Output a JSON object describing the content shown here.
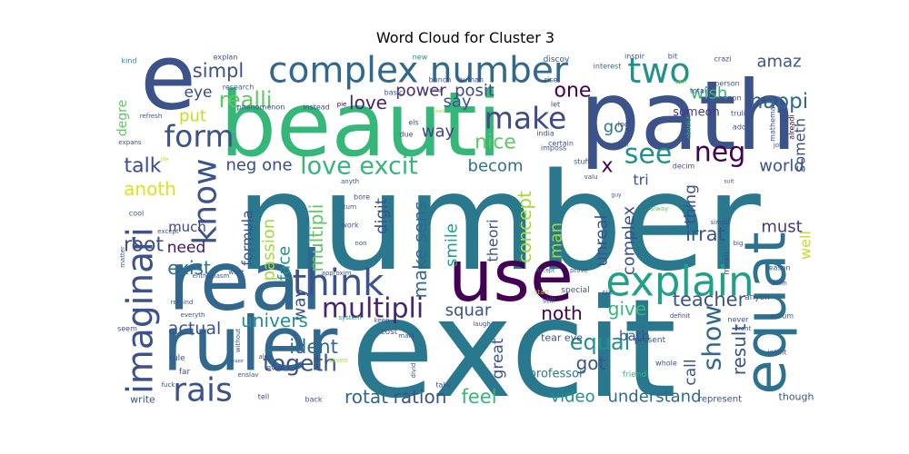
{
  "chart_data": {
    "type": "wordcloud",
    "title": "Word Cloud for Cluster 3",
    "words": [
      {
        "text": "number",
        "color": "#2a788e"
      },
      {
        "text": "excit",
        "color": "#2a788e"
      },
      {
        "text": "path",
        "color": "#3b528b"
      },
      {
        "text": "beauti",
        "color": "#35b779"
      },
      {
        "text": "e",
        "color": "#3b528b"
      },
      {
        "text": "real",
        "color": "#31688e"
      },
      {
        "text": "ruler",
        "color": "#31688e"
      },
      {
        "text": "use",
        "color": "#440154"
      },
      {
        "text": "equat",
        "color": "#2c728e"
      },
      {
        "text": "complex number",
        "color": "#31688e"
      },
      {
        "text": "two",
        "color": "#21918c"
      },
      {
        "text": "imaginari",
        "color": "#3b528b"
      },
      {
        "text": "form",
        "color": "#3b528b"
      },
      {
        "text": "make",
        "color": "#3e4a89"
      },
      {
        "text": "see",
        "color": "#21918c"
      },
      {
        "text": "neg",
        "color": "#440154"
      },
      {
        "text": "know",
        "color": "#3b528b"
      },
      {
        "text": "think",
        "color": "#3b528b"
      },
      {
        "text": "explain",
        "color": "#1fa187"
      },
      {
        "text": "show",
        "color": "#31688e"
      },
      {
        "text": "rais",
        "color": "#3b528b"
      },
      {
        "text": "togeth",
        "color": "#3b528b"
      },
      {
        "text": "simpl",
        "color": "#3b528b"
      },
      {
        "text": "realli",
        "color": "#5ec962"
      },
      {
        "text": "eye",
        "color": "#3e4a89"
      },
      {
        "text": "talk",
        "color": "#3e4a89"
      },
      {
        "text": "anoth",
        "color": "#dde318"
      },
      {
        "text": "love excit",
        "color": "#35b779"
      },
      {
        "text": "love",
        "color": "#482475"
      },
      {
        "text": "power",
        "color": "#472d7b"
      },
      {
        "text": "posit",
        "color": "#3e4a89"
      },
      {
        "text": "one",
        "color": "#440154"
      },
      {
        "text": "happi",
        "color": "#31688e"
      },
      {
        "text": "amaz",
        "color": "#3b528b"
      },
      {
        "text": "wish",
        "color": "#35b779"
      },
      {
        "text": "someon",
        "color": "#443983"
      },
      {
        "text": "someth",
        "color": "#3b528b"
      },
      {
        "text": "world",
        "color": "#3b528b"
      },
      {
        "text": "put",
        "color": "#c2df23"
      },
      {
        "text": "neg one",
        "color": "#3e4a89"
      },
      {
        "text": "x",
        "color": "#440154"
      },
      {
        "text": "tri",
        "color": "#3b528b"
      },
      {
        "text": "must",
        "color": "#443983"
      },
      {
        "text": "root",
        "color": "#3b528b"
      },
      {
        "text": "need",
        "color": "#471365"
      },
      {
        "text": "exist",
        "color": "#2c728e"
      },
      {
        "text": "much",
        "color": "#414487"
      },
      {
        "text": "multipli",
        "color": "#482475"
      },
      {
        "text": "multipli",
        "color": "#5ec962"
      },
      {
        "text": "make sens",
        "color": "#31688e"
      },
      {
        "text": "way",
        "color": "#3b528b"
      },
      {
        "text": "passion",
        "color": "#a0da39"
      },
      {
        "text": "formula",
        "color": "#3b528b"
      },
      {
        "text": "face",
        "color": "#21918c"
      },
      {
        "text": "irrat",
        "color": "#3b528b"
      },
      {
        "text": "complex",
        "color": "#3b528b"
      },
      {
        "text": "unreal",
        "color": "#3b528b"
      },
      {
        "text": "man",
        "color": "#a0da39"
      },
      {
        "text": "concept",
        "color": "#a0da39"
      },
      {
        "text": "theori",
        "color": "#3b528b"
      },
      {
        "text": "smile",
        "color": "#1fa187"
      },
      {
        "text": "digit",
        "color": "#3b528b"
      },
      {
        "text": "thing",
        "color": "#3b528b"
      },
      {
        "text": "well",
        "color": "#c2df23"
      },
      {
        "text": "becom",
        "color": "#2c728e"
      },
      {
        "text": "way",
        "color": "#414487"
      },
      {
        "text": "nice",
        "color": "#5ec962"
      },
      {
        "text": "say",
        "color": "#3b528b"
      },
      {
        "text": "go",
        "color": "#2a788e"
      },
      {
        "text": "noth",
        "color": "#440154"
      },
      {
        "text": "give",
        "color": "#35b779"
      },
      {
        "text": "teacher",
        "color": "#3b528b"
      },
      {
        "text": "actual",
        "color": "#3b528b"
      },
      {
        "text": "univers",
        "color": "#21918c"
      },
      {
        "text": "squar",
        "color": "#3b528b"
      },
      {
        "text": "equal",
        "color": "#21918c"
      },
      {
        "text": "got",
        "color": "#3b528b"
      },
      {
        "text": "bath",
        "color": "#3b528b"
      },
      {
        "text": "ident",
        "color": "#31688e"
      },
      {
        "text": "great",
        "color": "#3b528b"
      },
      {
        "text": "result",
        "color": "#3b528b"
      },
      {
        "text": "call",
        "color": "#3b528b"
      },
      {
        "text": "video",
        "color": "#21918c"
      },
      {
        "text": "understand",
        "color": "#31688e"
      },
      {
        "text": "feel",
        "color": "#35b779"
      },
      {
        "text": "ration",
        "color": "#3b528b"
      },
      {
        "text": "rotat",
        "color": "#31688e"
      },
      {
        "text": "professor",
        "color": "#2a788e"
      },
      {
        "text": "tear eye",
        "color": "#3b528b"
      },
      {
        "text": "degre",
        "color": "#5ec962"
      },
      {
        "text": "write",
        "color": "#3b528b"
      },
      {
        "text": "though",
        "color": "#3b528b"
      },
      {
        "text": "represent",
        "color": "#3b528b"
      },
      {
        "text": "kind",
        "color": "#21918c"
      },
      {
        "text": "explan",
        "color": "#3b528b"
      },
      {
        "text": "research",
        "color": "#31688e"
      },
      {
        "text": "phenomenon",
        "color": "#3b528b"
      },
      {
        "text": "instead",
        "color": "#3b528b"
      },
      {
        "text": "pie",
        "color": "#440154"
      },
      {
        "text": "new",
        "color": "#21918c"
      },
      {
        "text": "bunch",
        "color": "#3b528b"
      },
      {
        "text": "human",
        "color": "#3b528b"
      },
      {
        "text": "inspir",
        "color": "#3b528b"
      },
      {
        "text": "bit",
        "color": "#3b528b"
      },
      {
        "text": "crazi",
        "color": "#3b528b"
      },
      {
        "text": "discov",
        "color": "#3b528b"
      },
      {
        "text": "interest",
        "color": "#31688e"
      },
      {
        "text": "person",
        "color": "#3b528b"
      },
      {
        "text": "oppon",
        "color": "#3b528b"
      },
      {
        "text": "total",
        "color": "#3b528b"
      },
      {
        "text": "truli",
        "color": "#3b528b"
      },
      {
        "text": "ador",
        "color": "#3b528b"
      },
      {
        "text": "mathemat",
        "color": "#3b528b"
      },
      {
        "text": "alreadi",
        "color": "#440154"
      },
      {
        "text": "joke",
        "color": "#3b528b"
      },
      {
        "text": "certain",
        "color": "#3b528b"
      },
      {
        "text": "deal",
        "color": "#3b528b"
      },
      {
        "text": "look",
        "color": "#3b528b"
      },
      {
        "text": "absolut",
        "color": "#35b779"
      },
      {
        "text": "india",
        "color": "#3b528b"
      },
      {
        "text": "imposs",
        "color": "#3b528b"
      },
      {
        "text": "stuff",
        "color": "#3b528b"
      },
      {
        "text": "valu",
        "color": "#3b528b"
      },
      {
        "text": "guy",
        "color": "#3b528b"
      },
      {
        "text": "decim",
        "color": "#3b528b"
      },
      {
        "text": "suit",
        "color": "#3b528b"
      },
      {
        "text": "alway",
        "color": "#5ec962"
      },
      {
        "text": "simpli",
        "color": "#3b528b"
      },
      {
        "text": "big",
        "color": "#3b528b"
      },
      {
        "text": "anyth",
        "color": "#3b528b"
      },
      {
        "text": "bore",
        "color": "#3b528b"
      },
      {
        "text": "turn",
        "color": "#3b528b"
      },
      {
        "text": "work",
        "color": "#3b528b"
      },
      {
        "text": "non",
        "color": "#3b528b"
      },
      {
        "text": "except",
        "color": "#3b528b"
      },
      {
        "text": "matter",
        "color": "#3b528b"
      },
      {
        "text": "want",
        "color": "#3b528b"
      },
      {
        "text": "enthusiasm",
        "color": "#3b528b"
      },
      {
        "text": "approxim",
        "color": "#3b528b"
      },
      {
        "text": "accept",
        "color": "#3b528b"
      },
      {
        "text": "prove",
        "color": "#3b528b"
      },
      {
        "text": "special",
        "color": "#3b528b"
      },
      {
        "text": "six",
        "color": "#3b528b"
      },
      {
        "text": "mean",
        "color": "#3b528b"
      },
      {
        "text": "reason",
        "color": "#3b528b"
      },
      {
        "text": "defin",
        "color": "#3b528b"
      },
      {
        "text": "assum",
        "color": "#3b528b"
      },
      {
        "text": "anyon",
        "color": "#3b528b"
      },
      {
        "text": "start",
        "color": "#a0da39"
      },
      {
        "text": "still",
        "color": "#3b528b"
      },
      {
        "text": "present",
        "color": "#3b528b"
      },
      {
        "text": "never",
        "color": "#3b528b"
      },
      {
        "text": "system",
        "color": "#21918c"
      },
      {
        "text": "keep",
        "color": "#3b528b"
      },
      {
        "text": "cost",
        "color": "#3b528b"
      },
      {
        "text": "laugh",
        "color": "#3b528b"
      },
      {
        "text": "definit",
        "color": "#3b528b"
      },
      {
        "text": "front",
        "color": "#3b528b"
      },
      {
        "text": "intuit",
        "color": "#3b528b"
      },
      {
        "text": "without",
        "color": "#3b528b"
      },
      {
        "text": "alon",
        "color": "#3b528b"
      },
      {
        "text": "even",
        "color": "#3b528b"
      },
      {
        "text": "maid",
        "color": "#3b528b"
      },
      {
        "text": "whole",
        "color": "#3b528b"
      },
      {
        "text": "seven",
        "color": "#a0da39"
      },
      {
        "text": "divid",
        "color": "#3b528b"
      },
      {
        "text": "friend",
        "color": "#35b779"
      },
      {
        "text": "take",
        "color": "#3b528b"
      },
      {
        "text": "far",
        "color": "#3b528b"
      },
      {
        "text": "enslav",
        "color": "#3b528b"
      },
      {
        "text": "tell",
        "color": "#3b528b"
      },
      {
        "text": "back",
        "color": "#3b528b"
      },
      {
        "text": "fuck",
        "color": "#3b528b"
      },
      {
        "text": "major",
        "color": "#3b528b"
      },
      {
        "text": "remind",
        "color": "#3b528b"
      },
      {
        "text": "everyth",
        "color": "#3b528b"
      },
      {
        "text": "seem",
        "color": "#3b528b"
      },
      {
        "text": "expans",
        "color": "#3b528b"
      },
      {
        "text": "refresh",
        "color": "#3b528b"
      },
      {
        "text": "life",
        "color": "#c2df23"
      },
      {
        "text": "cool",
        "color": "#3b528b"
      },
      {
        "text": "rule",
        "color": "#3b528b"
      },
      {
        "text": "els",
        "color": "#3b528b"
      },
      {
        "text": "due",
        "color": "#3b528b"
      },
      {
        "text": "hang",
        "color": "#3b528b"
      },
      {
        "text": "heart",
        "color": "#a0da39"
      },
      {
        "text": "let",
        "color": "#3b528b"
      },
      {
        "text": "rise",
        "color": "#3b528b"
      },
      {
        "text": "sorri",
        "color": "#a0da39"
      },
      {
        "text": "basic",
        "color": "#3b528b"
      }
    ]
  }
}
